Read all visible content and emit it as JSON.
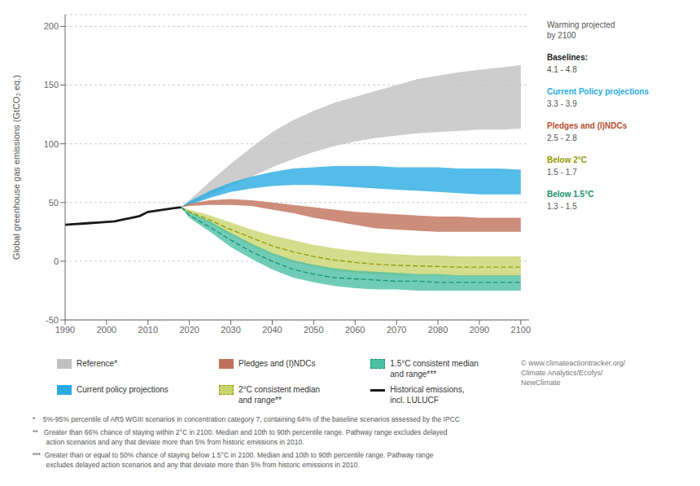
{
  "chart_data": {
    "type": "area",
    "ylabel": "Global greenhouse gas emissions (GtCO₂ eq.)",
    "xlim": [
      1990,
      2102
    ],
    "ylim": [
      -50,
      210
    ],
    "xticks": [
      1990,
      2000,
      2010,
      2020,
      2030,
      2040,
      2050,
      2060,
      2070,
      2080,
      2090,
      2100
    ],
    "yticks": [
      -50,
      0,
      50,
      100,
      150,
      200
    ],
    "grid": true,
    "legend": "bottom",
    "series": [
      {
        "name": "Reference*",
        "type": "range",
        "color": "#c0c0c0",
        "x": [
          2018,
          2020,
          2025,
          2030,
          2035,
          2040,
          2045,
          2050,
          2055,
          2060,
          2065,
          2070,
          2075,
          2080,
          2085,
          2090,
          2095,
          2100
        ],
        "lower": [
          46,
          48,
          56,
          64,
          72,
          80,
          87,
          93,
          98,
          102,
          105,
          107,
          109,
          110,
          111,
          112,
          112,
          113
        ],
        "upper": [
          46,
          52,
          68,
          83,
          97,
          110,
          120,
          128,
          135,
          140,
          145,
          150,
          155,
          158,
          161,
          163,
          165,
          167
        ]
      },
      {
        "name": "Current policy projections",
        "type": "range",
        "color": "#29abe2",
        "x": [
          2018,
          2020,
          2025,
          2030,
          2035,
          2040,
          2045,
          2050,
          2055,
          2060,
          2065,
          2070,
          2075,
          2080,
          2085,
          2090,
          2095,
          2100
        ],
        "lower": [
          46,
          48,
          54,
          59,
          62,
          64,
          65,
          65,
          64,
          63,
          62,
          61,
          60,
          59,
          58,
          57,
          57,
          57
        ],
        "upper": [
          46,
          51,
          60,
          67,
          72,
          76,
          79,
          80,
          81,
          81,
          81,
          80,
          80,
          80,
          79,
          79,
          79,
          78
        ]
      },
      {
        "name": "Pledges and (I)NDCs",
        "type": "range",
        "color": "#c0705a",
        "x": [
          2018,
          2020,
          2025,
          2030,
          2035,
          2040,
          2045,
          2050,
          2055,
          2060,
          2065,
          2070,
          2075,
          2080,
          2085,
          2090,
          2095,
          2100
        ],
        "lower": [
          46,
          47,
          48,
          48,
          47,
          44,
          41,
          37,
          34,
          31,
          28,
          27,
          26,
          25,
          25,
          25,
          25,
          25
        ],
        "upper": [
          46,
          49,
          52,
          53,
          52,
          50,
          48,
          46,
          44,
          42,
          41,
          40,
          39,
          38,
          38,
          37,
          37,
          37
        ]
      },
      {
        "name": "2°C consistent median\nand range**",
        "type": "range",
        "color": "#c8d46e",
        "x": [
          2018,
          2020,
          2025,
          2030,
          2035,
          2040,
          2045,
          2050,
          2055,
          2060,
          2065,
          2070,
          2075,
          2080,
          2085,
          2090,
          2095,
          2100
        ],
        "lower": [
          46,
          41,
          32,
          22,
          13,
          5,
          -1,
          -5,
          -8,
          -10,
          -11,
          -12,
          -12,
          -12,
          -13,
          -13,
          -13,
          -13
        ],
        "upper": [
          46,
          44,
          39,
          33,
          27,
          22,
          18,
          14,
          11,
          9,
          7,
          6,
          5,
          5,
          4,
          4,
          4,
          4
        ]
      },
      {
        "type": "line",
        "line_style": "dashed",
        "color": "#909a00",
        "x": [
          2018,
          2020,
          2025,
          2030,
          2035,
          2040,
          2045,
          2050,
          2055,
          2060,
          2065,
          2070,
          2075,
          2080,
          2085,
          2090,
          2095,
          2100
        ],
        "values": [
          46,
          42,
          35,
          27,
          20,
          13,
          8,
          4,
          1,
          -1,
          -2.5,
          -3.5,
          -4,
          -4.5,
          -5,
          -5,
          -5,
          -5
        ]
      },
      {
        "name": "1.5°C consistent median\nand range***",
        "type": "range",
        "color": "#4cbfa4",
        "x": [
          2018,
          2020,
          2025,
          2030,
          2035,
          2040,
          2045,
          2050,
          2055,
          2060,
          2065,
          2070,
          2075,
          2080,
          2085,
          2090,
          2095,
          2100
        ],
        "lower": [
          46,
          37,
          25,
          12,
          2,
          -7,
          -14,
          -18,
          -21,
          -23,
          -24,
          -24,
          -25,
          -25,
          -25,
          -25,
          -25,
          -25
        ],
        "upper": [
          46,
          42,
          34,
          24,
          15,
          7,
          1,
          -3,
          -6,
          -8,
          -9,
          -10,
          -11,
          -11,
          -12,
          -12,
          -12,
          -12
        ]
      },
      {
        "type": "line",
        "line_style": "dashed",
        "color": "#1a9070",
        "x": [
          2018,
          2020,
          2025,
          2030,
          2035,
          2040,
          2045,
          2050,
          2055,
          2060,
          2065,
          2070,
          2075,
          2080,
          2085,
          2090,
          2095,
          2100
        ],
        "values": [
          46,
          39,
          29,
          18,
          8,
          0,
          -7,
          -11,
          -14,
          -15,
          -16,
          -17,
          -17,
          -18,
          -18,
          -18,
          -18,
          -18
        ]
      },
      {
        "name": "Historical emissions,\nincl. LULUCF",
        "type": "line",
        "line_style": "solid",
        "color": "#1a1a1a",
        "x": [
          1990,
          1992,
          1994,
          1996,
          1998,
          2000,
          2002,
          2004,
          2006,
          2008,
          2010,
          2012,
          2014,
          2016,
          2018
        ],
        "values": [
          31,
          31.5,
          32,
          32.5,
          33,
          33.5,
          34,
          35.5,
          37,
          38.5,
          42,
          43,
          44,
          45,
          46
        ]
      }
    ],
    "annotations": [
      {
        "text": "Warming projected\nby 2100"
      },
      {
        "text": "Baselines:",
        "color": "#222222"
      },
      {
        "text": "4.1 - 4.8"
      },
      {
        "text": "Current Policy projections",
        "color": "#29abe2"
      },
      {
        "text": "3.3 - 3.9"
      },
      {
        "text": "Pledges and (I)NDCs",
        "color": "#b85030"
      },
      {
        "text": "2.5 - 2.8"
      },
      {
        "text": "Below 2°C",
        "color": "#909a00"
      },
      {
        "text": "1.5 - 1.7"
      },
      {
        "text": "Below 1.5°C",
        "color": "#1a9070"
      },
      {
        "text": "1.3 - 1.5"
      }
    ],
    "credit": "© www.climateactiontracker.org/\nClimate Analytics/Ecofys/\nNewClimate",
    "footnotes": [
      "*    5%-95% percentile of AR5 WGIII scenarios in concentration category 7, containing 64% of the baseline scenarios assessed by the IPCC",
      "**   Greater than 66% chance of staying within 2°C in 2100. Median and 10th to 90th percentile range. Pathway range excludes delayed\n       action scenarios and any that deviate more than 5% from historic emissions in 2010.",
      "***  Greater than or equal to 50% chance of staying below 1.5°C in 2100. Median and 10th to 90th percentile range. Pathway range\n       excludes delayed action scenarios and any that deviate more than 5% from historic emissions in 2010."
    ]
  }
}
